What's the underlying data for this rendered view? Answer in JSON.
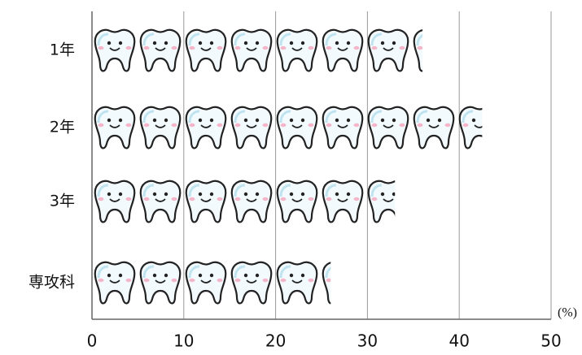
{
  "chart_data": {
    "type": "pictograph-bar",
    "categories": [
      "1年",
      "2年",
      "3年",
      "専攻科"
    ],
    "values": [
      36,
      42.5,
      33,
      26
    ],
    "xlim": [
      0,
      50
    ],
    "xticks": [
      0,
      10,
      20,
      30,
      40,
      50
    ],
    "unit_label": "(%)",
    "grid": true
  }
}
